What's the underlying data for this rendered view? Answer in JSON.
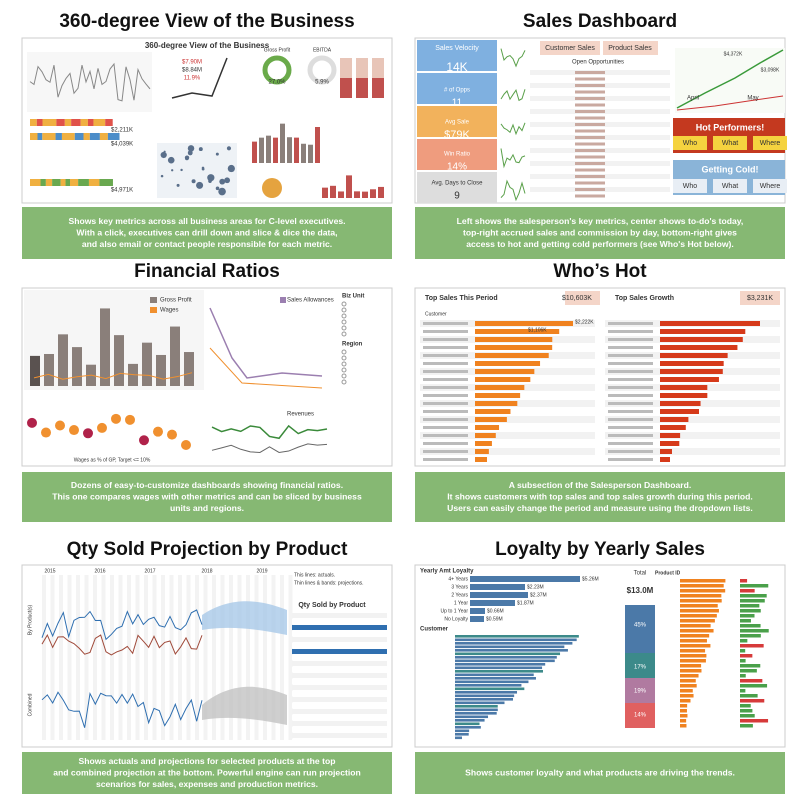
{
  "panels": [
    {
      "title": "360-degree View of the Business",
      "caption": [
        "Shows key metrics across all business areas for C-level executives.",
        "With a click, executives can drill down and slice & dice the data,",
        "and also email or contact people responsible for each metric."
      ],
      "labels": [
        "360-degree View of the Business",
        "$7.90M",
        "$8.84M",
        "11.9%",
        "Gross Profit",
        "EBITDA",
        "27.0%",
        "5.9%",
        "$2,211K",
        "$4,039K",
        "$4,971K"
      ]
    },
    {
      "title": "Sales Dashboard",
      "caption": [
        "Left shows the salesperson's key metrics, center shows to-do's today,",
        "top-right accrued sales and commission by day, bottom-right gives",
        "access to hot and getting cold performers (see Who's Hot below)."
      ],
      "labels": [
        "Sales Velocity",
        "14K",
        "# of Opps",
        "11",
        "Avg Sale",
        "$79K",
        "Win Ratio",
        "14%",
        "Avg. Days to Close",
        "9",
        "Customer Sales",
        "Product Sales",
        "Open Opportunities",
        "Hot Performers!",
        "Who",
        "What",
        "Where",
        "Getting Cold!",
        "Who",
        "What",
        "Where",
        "April",
        "May",
        "$4,372K",
        "$3,098K"
      ]
    },
    {
      "title": "Financial Ratios",
      "caption": [
        "Dozens of easy-to-customize dashboards showing financial ratios.",
        "This one compares wages with other metrics and can be sliced by business",
        "units and regions."
      ],
      "labels": [
        "Gross Profit",
        "Wages",
        "Sales Allowances",
        "Biz Unit",
        "Region",
        "Revenues",
        "Wages as % of GP, Target <= 10%"
      ]
    },
    {
      "title": "Who’s Hot",
      "caption": [
        "A subsection of the Salesperson Dashboard.",
        "It shows customers with top sales and top sales growth during this period.",
        "Users can easily change the period and measure using the dropdown lists."
      ],
      "labels": [
        "Top Sales This Period",
        "$10,603K",
        "Top Sales Growth",
        "$3,231K",
        "Customer",
        "$2,222K",
        "$1,106K"
      ]
    },
    {
      "title": "Qty Sold Projection by Product",
      "caption": [
        "Shows actuals and projections for selected products at the top",
        "and combined projection at the bottom. Powerful engine can run projection",
        "scenarios for sales, expenses and production metrics."
      ],
      "labels": [
        "2015",
        "2016",
        "2017",
        "2018",
        "2019",
        "Qty Sold by Product",
        "By Product(s)",
        "Combined",
        "This lines: actuals.",
        "Thin lines & bands: projections."
      ]
    },
    {
      "title": "Loyalty by Yearly Sales",
      "caption": [
        "Shows customer loyalty and what products are driving the trends."
      ],
      "labels": [
        "Yearly Amt Loyalty",
        "4+ Years",
        "3 Years",
        "2 Years",
        "1 Year",
        "Up to 1 Year",
        "No Loyalty",
        "$5.26M",
        "$2.23M",
        "$2.37M",
        "$1.87M",
        "$0.66M",
        "$0.59M",
        "Total",
        "$13.0M",
        "Customer",
        "Product ID",
        "45%",
        "17%",
        "19%",
        "14%"
      ]
    }
  ]
}
